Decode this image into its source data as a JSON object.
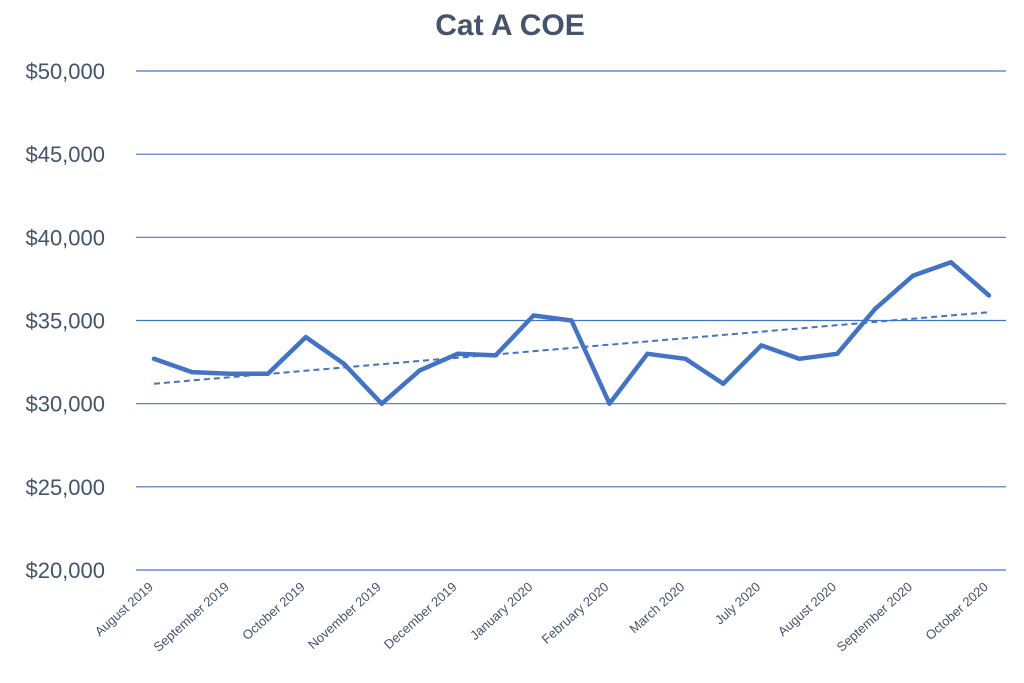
{
  "chart_data": {
    "type": "line",
    "title": "Cat A COE",
    "xlabel": "",
    "ylabel": "",
    "ylim": [
      20000,
      50000
    ],
    "yticks": [
      20000,
      25000,
      30000,
      35000,
      40000,
      45000,
      50000
    ],
    "ytick_labels": [
      "$20,000",
      "$25,000",
      "$30,000",
      "$35,000",
      "$40,000",
      "$45,000",
      "$50,000"
    ],
    "grid": true,
    "legend": "none",
    "x_labels": [
      "August 2019",
      "September 2019",
      "October 2019",
      "November 2019",
      "December 2019",
      "January 2020",
      "February 2020",
      "March 2020",
      "July 2020",
      "August 2020",
      "September 2020",
      "October 2020"
    ],
    "series": [
      {
        "color": "#4472c4",
        "values": [
          32700,
          31900,
          31800,
          31800,
          34000,
          32400,
          30000,
          32000,
          33000,
          32900,
          35300,
          35000,
          30000,
          33000,
          32700,
          31200,
          33500,
          32700,
          33000,
          35700,
          37700,
          38500,
          36500
        ]
      }
    ],
    "trendline": {
      "type": "linear",
      "style": "dashed",
      "color": "#4472c4",
      "start": 31200,
      "end": 35500
    }
  }
}
